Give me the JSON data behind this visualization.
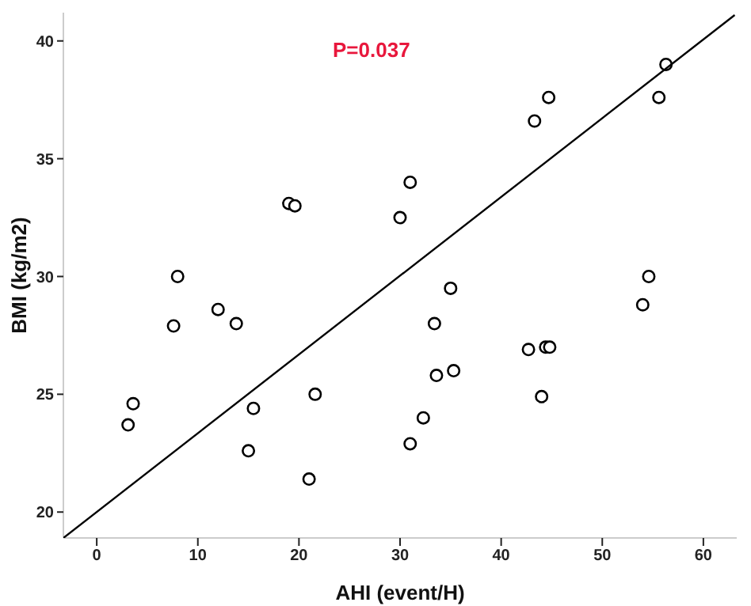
{
  "chart_data": {
    "type": "scatter",
    "xlabel": "AHI (event/H)",
    "ylabel": "BMI (kg/m2)",
    "annotations": [
      "P=0.037"
    ],
    "xlim": [
      -3.3,
      63.3
    ],
    "ylim": [
      18.9,
      41.2
    ],
    "xticks": [
      0,
      10,
      20,
      30,
      40,
      50,
      60
    ],
    "yticks": [
      20,
      25,
      30,
      35,
      40
    ],
    "grid": false,
    "marker": "circle",
    "series": [
      {
        "color": "#000000",
        "x": [
          3.1,
          3.6,
          7.6,
          8,
          12,
          13.8,
          15,
          15.5,
          19,
          19.6,
          21,
          21.6,
          30,
          31,
          31,
          32.3,
          33.4,
          33.6,
          35,
          35.3,
          42.7,
          43.3,
          44,
          44.4,
          44.8,
          44.7,
          54,
          54.6,
          55.6,
          56.3
        ],
        "values": [
          23.7,
          24.6,
          27.9,
          30,
          28.6,
          28,
          22.6,
          24.4,
          33.1,
          33,
          21.4,
          25,
          32.5,
          34,
          22.9,
          24,
          28,
          25.8,
          29.5,
          26,
          26.9,
          36.6,
          24.9,
          27,
          27,
          37.6,
          28.8,
          30,
          37.6,
          39
        ]
      },
      {
        "type": "line",
        "color": "#000000",
        "marker": "none",
        "x": [
          -3.3,
          63.1
        ],
        "values": [
          18.9,
          41.1
        ]
      }
    ]
  }
}
